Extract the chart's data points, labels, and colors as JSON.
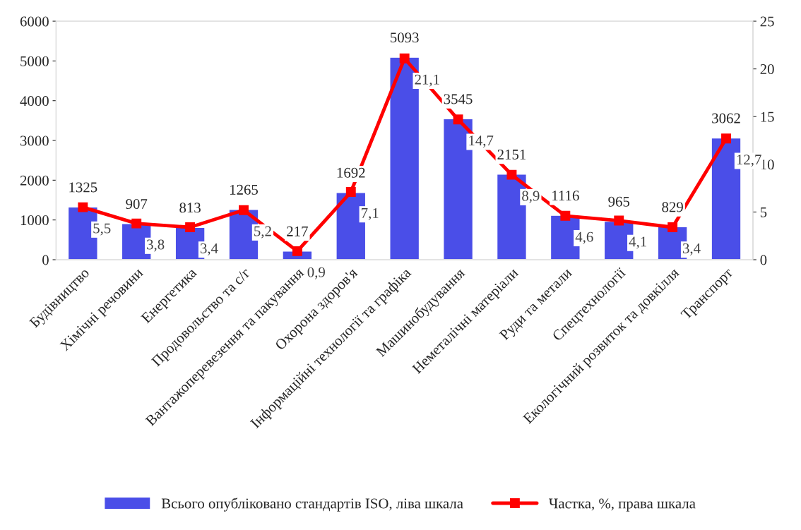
{
  "chart_data": {
    "type": "bar",
    "categories": [
      "Будівництво",
      "Хімічні речовини",
      "Енергетика",
      "Продовольство та с/г",
      "Вантажоперевезення та пакування",
      "Охорона здоров'я",
      "Інформаційні технології та графіка",
      "Машинобудування",
      "Неметалічні матеріали",
      "Руди та метали",
      "Спецтехнології",
      "Екологічний розвиток та довкілля",
      "Транспорт"
    ],
    "series": [
      {
        "name": "Всього опубліковано стандартів ISO, ліва шкала",
        "color": "#4a4ee8",
        "values": [
          1325,
          907,
          813,
          1265,
          217,
          1692,
          5093,
          3545,
          2151,
          1116,
          965,
          829,
          3062
        ],
        "value_labels": [
          "1325",
          "907",
          "813",
          "1265",
          "217",
          "1692",
          "5093",
          "3545",
          "2151",
          "1116",
          "965",
          "829",
          "3062"
        ]
      },
      {
        "name": "Частка, %, права шкала",
        "type": "line",
        "axis": "y2",
        "color": "#ff0000",
        "marker": "square",
        "values": [
          5.5,
          3.8,
          3.4,
          5.2,
          0.9,
          7.1,
          21.1,
          14.7,
          8.9,
          4.6,
          4.1,
          3.4,
          12.7
        ],
        "value_labels": [
          "5,5",
          "3,8",
          "3,4",
          "5,2",
          "0,9",
          "7,1",
          "21,1",
          "14,7",
          "8,9",
          "4,6",
          "4,1",
          "3,4",
          "12,7"
        ]
      }
    ],
    "ylim": [
      0,
      6000
    ],
    "yticks": [
      0,
      1000,
      2000,
      3000,
      4000,
      5000,
      6000
    ],
    "y2lim": [
      0,
      25
    ],
    "y2ticks": [
      0,
      5,
      10,
      15,
      20,
      25
    ],
    "grid": false,
    "legend": "bottom"
  }
}
